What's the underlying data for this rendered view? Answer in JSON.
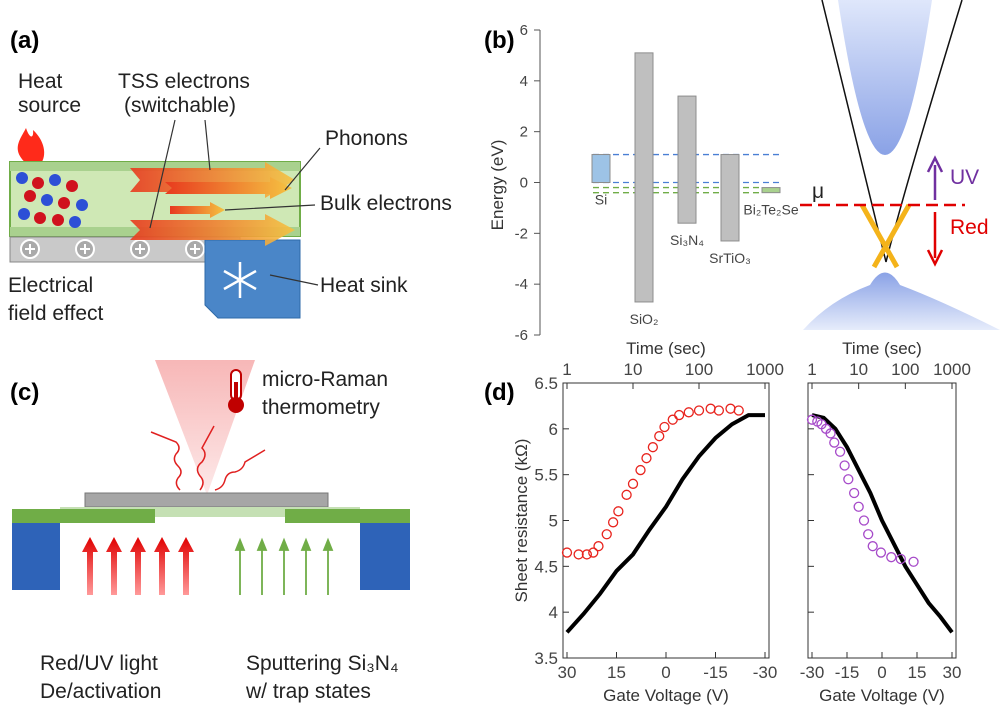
{
  "panel_labels": [
    "(a)",
    "(b)",
    "(c)",
    "(d)"
  ],
  "panel_a": {
    "heat_source": [
      "Heat",
      "source"
    ],
    "tss_electrons": [
      "TSS electrons",
      "(switchable)"
    ],
    "phonons": "Phonons",
    "bulk_electrons": "Bulk electrons",
    "field_effect": [
      "Electrical",
      "field effect"
    ],
    "heat_sink": "Heat sink"
  },
  "panel_b": {
    "mu": "μ",
    "uv": "UV",
    "red": "Red"
  },
  "panel_c": {
    "raman": [
      "micro-Raman",
      "thermometry"
    ],
    "light": [
      "Red/UV light",
      "De/activation"
    ],
    "sputter": [
      "Sputtering Si₃N₄",
      "w/ trap states"
    ]
  },
  "chart_data": [
    {
      "type": "floating-bar",
      "ylabel": "Energy (eV)",
      "categories": [
        "Si",
        "SiO₂",
        "Si₃N₄",
        "SrTiO₃",
        "Bi₂Te₂Se"
      ],
      "bottoms": [
        0,
        -4.7,
        -1.6,
        -2.3,
        -0.4
      ],
      "tops": [
        1.1,
        5.1,
        3.4,
        1.1,
        -0.2
      ],
      "colors": [
        "#9dc3e6",
        "#bfbfbf",
        "#bfbfbf",
        "#bfbfbf",
        "#a9d18e"
      ],
      "ylim": [
        -6,
        6
      ],
      "yticks": [
        -6,
        -4,
        -2,
        0,
        2,
        4,
        6
      ]
    },
    {
      "type": "line-scatter",
      "ylabel": "Sheet resistance (kΩ)",
      "xlabel": "Gate Voltage (V)",
      "x2label": "Time (sec)",
      "xlim": [
        30,
        -30
      ],
      "xticks": [
        30,
        15,
        0,
        -15,
        -30
      ],
      "x2lim": [
        1,
        1000
      ],
      "x2ticks": [
        1,
        10,
        100,
        1000
      ],
      "x2log": true,
      "ylim": [
        3.5,
        6.5
      ],
      "yticks": [
        3.5,
        4,
        4.5,
        5,
        5.5,
        6,
        6.5
      ],
      "show_ytick_labels": true,
      "series": [
        {
          "color": "#000000",
          "marker": "line",
          "x": [
            30,
            25,
            20,
            15,
            10,
            5,
            0,
            -5,
            -10,
            -15,
            -20,
            -25,
            -30
          ],
          "values": [
            3.78,
            3.98,
            4.2,
            4.45,
            4.63,
            4.9,
            5.15,
            5.45,
            5.7,
            5.9,
            6.05,
            6.15,
            6.15
          ]
        },
        {
          "color": "#e8231d",
          "marker": "circle",
          "axis": "x2",
          "x": [
            1,
            1.5,
            2,
            2.5,
            3,
            4,
            5,
            6,
            8,
            10,
            13,
            16,
            20,
            25,
            30,
            40,
            50,
            70,
            100,
            150,
            200,
            300,
            400
          ],
          "values": [
            4.65,
            4.63,
            4.63,
            4.65,
            4.72,
            4.85,
            4.98,
            5.1,
            5.28,
            5.4,
            5.55,
            5.68,
            5.8,
            5.92,
            6.02,
            6.1,
            6.15,
            6.18,
            6.2,
            6.22,
            6.2,
            6.22,
            6.2
          ]
        }
      ]
    },
    {
      "type": "line-scatter",
      "xlabel": "Gate Voltage (V)",
      "x2label": "Time (sec)",
      "xlim": [
        -30,
        30
      ],
      "xticks": [
        -30,
        -15,
        0,
        15,
        30
      ],
      "x2lim": [
        1,
        1000
      ],
      "x2ticks": [
        1,
        10,
        100,
        1000
      ],
      "x2log": true,
      "ylim": [
        3.5,
        6.5
      ],
      "yticks": [
        3.5,
        4,
        4.5,
        5,
        5.5,
        6,
        6.5
      ],
      "show_ytick_labels": false,
      "series": [
        {
          "color": "#000000",
          "marker": "line",
          "x": [
            -30,
            -25,
            -20,
            -15,
            -10,
            -5,
            0,
            5,
            10,
            15,
            20,
            25,
            30
          ],
          "values": [
            6.15,
            6.12,
            6.0,
            5.8,
            5.55,
            5.3,
            5.0,
            4.75,
            4.5,
            4.3,
            4.1,
            3.95,
            3.78
          ]
        },
        {
          "color": "#a64ac9",
          "marker": "circle",
          "axis": "x2",
          "x": [
            1,
            1.3,
            1.6,
            2,
            2.5,
            3,
            4,
            5,
            6,
            8,
            10,
            13,
            16,
            20,
            30,
            50,
            80,
            150
          ],
          "values": [
            6.1,
            6.08,
            6.05,
            6.0,
            5.95,
            5.85,
            5.75,
            5.6,
            5.45,
            5.3,
            5.15,
            5.0,
            4.85,
            4.72,
            4.65,
            4.6,
            4.58,
            4.55
          ]
        }
      ]
    }
  ]
}
